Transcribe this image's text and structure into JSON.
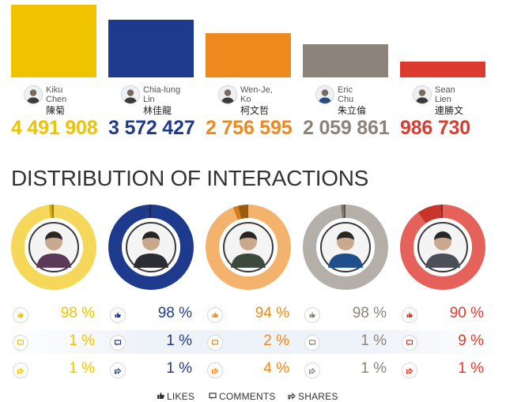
{
  "colors": {
    "kiku": "#f0c300",
    "chialung": "#1e3a8c",
    "wenje": "#ee8a1d",
    "eric": "#8c847a",
    "sean": "#dd3b2f"
  },
  "chart_data": [
    {
      "type": "bar",
      "title": "",
      "categories": [
        "Kiku Chen",
        "Chia-lung Lin",
        "Wen-Je, Ko",
        "Eric Chu",
        "Sean Lien"
      ],
      "values": [
        4491908,
        3572427,
        2756595,
        2059861,
        986730
      ]
    },
    {
      "type": "pie",
      "title": "DISTRIBUTION OF INTERACTIONS",
      "categories": [
        "LIKES",
        "COMMENTS",
        "SHARES"
      ],
      "series": [
        {
          "name": "Kiku Chen",
          "values": [
            98,
            1,
            1
          ]
        },
        {
          "name": "Chia-lung Lin",
          "values": [
            98,
            1,
            1
          ]
        },
        {
          "name": "Wen-Je, Ko",
          "values": [
            94,
            2,
            4
          ]
        },
        {
          "name": "Eric Chu",
          "values": [
            98,
            1,
            1
          ]
        },
        {
          "name": "Sean Lien",
          "values": [
            90,
            9,
            1
          ]
        }
      ]
    }
  ],
  "candidates": [
    {
      "name_en_1": "Kiku",
      "name_en_2": "Chen",
      "name_zh": "陳菊",
      "total": "4 491 908",
      "likes": "98 %",
      "comments": "1 %",
      "shares": "1 %"
    },
    {
      "name_en_1": "Chia-lung",
      "name_en_2": "Lin",
      "name_zh": "林佳龍",
      "total": "3 572 427",
      "likes": "98 %",
      "comments": "1 %",
      "shares": "1 %"
    },
    {
      "name_en_1": "Wen-Je,",
      "name_en_2": "Ko",
      "name_zh": "柯文哲",
      "total": "2 756 595",
      "likes": "94 %",
      "comments": "2 %",
      "shares": "4 %"
    },
    {
      "name_en_1": "Eric",
      "name_en_2": "Chu",
      "name_zh": "朱立倫",
      "total": "2 059 861",
      "likes": "98 %",
      "comments": "1 %",
      "shares": "1 %"
    },
    {
      "name_en_1": "Sean",
      "name_en_2": "Lien",
      "name_zh": "連勝文",
      "total": "986 730",
      "likes": "90 %",
      "comments": "9 %",
      "shares": "1 %"
    }
  ],
  "section_title": "DISTRIBUTION OF INTERACTIONS",
  "legend": {
    "likes": "LIKES",
    "comments": "COMMENTS",
    "shares": "SHARES"
  },
  "icons": {
    "likes": "thumbs-up-icon",
    "comments": "comment-icon",
    "shares": "share-icon",
    "avatar": "avatar-icon"
  }
}
